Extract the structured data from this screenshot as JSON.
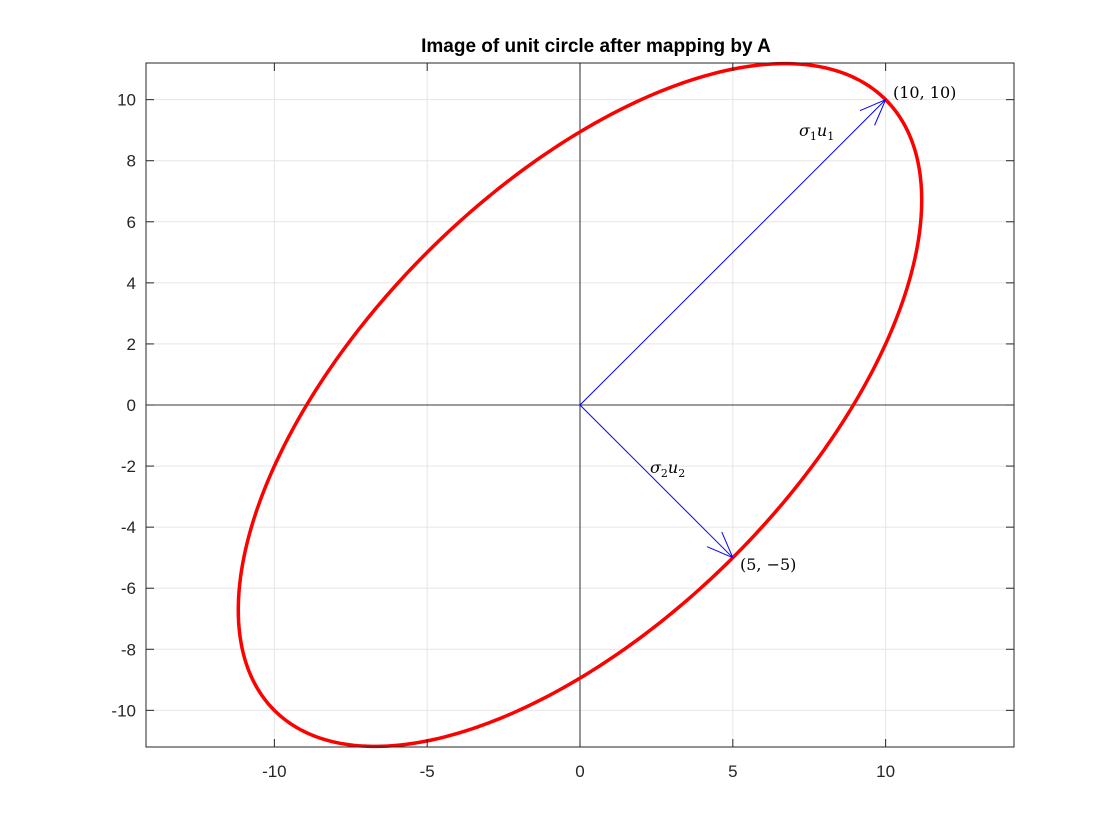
{
  "chart_data": {
    "type": "line",
    "title": "Image of unit circle after mapping by A",
    "xlabel": "",
    "ylabel": "",
    "xlim": [
      -14.2,
      14.2
    ],
    "ylim": [
      -11.2,
      11.2
    ],
    "grid": true,
    "x_ticks": [
      -10,
      -5,
      0,
      5,
      10
    ],
    "x_tick_labels": [
      "-10",
      "-5",
      "0",
      "5",
      "10"
    ],
    "y_ticks": [
      10,
      8,
      6,
      4,
      2,
      0,
      -2,
      -4,
      -6,
      -8,
      -10
    ],
    "y_tick_labels": [
      "10",
      "8",
      "6",
      "4",
      "2",
      "0",
      "-2",
      "-4",
      "-6",
      "-8",
      "-10"
    ],
    "ellipse": {
      "parametric": "x = 10cos(t) + 5sin(t), y = 10cos(t) - 5sin(t)",
      "a_columns": [
        [
          10,
          10
        ],
        [
          5,
          -5
        ]
      ],
      "color": "#ff0000"
    },
    "vectors": [
      {
        "from": [
          0,
          0
        ],
        "to": [
          10,
          10
        ],
        "label": "σ1u1",
        "endpoint_label": "(10, 10)",
        "color": "#0000ff"
      },
      {
        "from": [
          0,
          0
        ],
        "to": [
          5,
          -5
        ],
        "label": "σ2u2",
        "endpoint_label": "(5, −5)",
        "color": "#0000ff"
      }
    ],
    "colors": {
      "axes_lines": "#000000",
      "grid": "#e6e6e6",
      "curve": "#ff0000",
      "vectors": "#0000ff"
    }
  }
}
